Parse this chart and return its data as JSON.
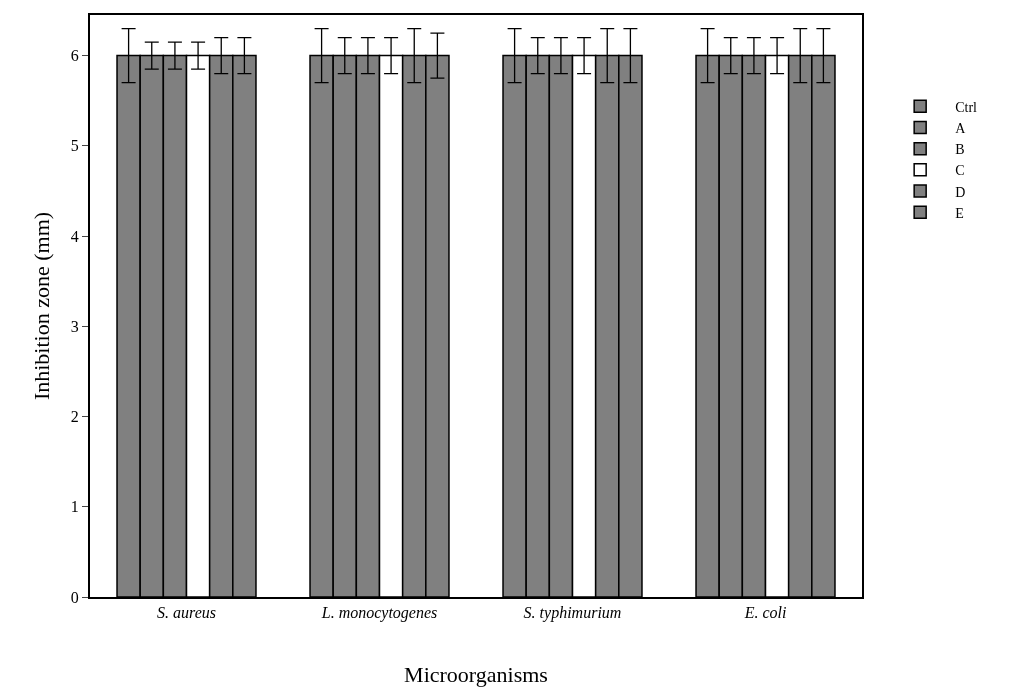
{
  "chart_data": {
    "type": "bar",
    "xlabel": "Microorganisms",
    "ylabel": "Inhibition zone (mm)",
    "categories": [
      "S. aureus",
      "L. monocytogenes",
      "S. typhimurium",
      "E. coli"
    ],
    "series": [
      {
        "name": "Ctrl",
        "color": "#808080",
        "values": [
          6,
          6,
          6,
          6
        ],
        "errors": [
          0.3,
          0.3,
          0.3,
          0.3
        ]
      },
      {
        "name": "A",
        "color": "#808080",
        "values": [
          6,
          6,
          6,
          6
        ],
        "errors": [
          0.15,
          0.2,
          0.2,
          0.2
        ]
      },
      {
        "name": "B",
        "color": "#808080",
        "values": [
          6,
          6,
          6,
          6
        ],
        "errors": [
          0.15,
          0.2,
          0.2,
          0.2
        ]
      },
      {
        "name": "C",
        "color": "#ffffff",
        "values": [
          6,
          6,
          6,
          6
        ],
        "errors": [
          0.15,
          0.2,
          0.2,
          0.2
        ]
      },
      {
        "name": "D",
        "color": "#808080",
        "values": [
          6,
          6,
          6,
          6
        ],
        "errors": [
          0.2,
          0.3,
          0.3,
          0.3
        ]
      },
      {
        "name": "E",
        "color": "#808080",
        "values": [
          6,
          6,
          6,
          6
        ],
        "errors": [
          0.2,
          0.25,
          0.3,
          0.3
        ]
      }
    ],
    "ylim": [
      0,
      6.45
    ],
    "yticks": [
      0,
      1,
      2,
      3,
      4,
      5,
      6
    ],
    "legend": "right"
  }
}
